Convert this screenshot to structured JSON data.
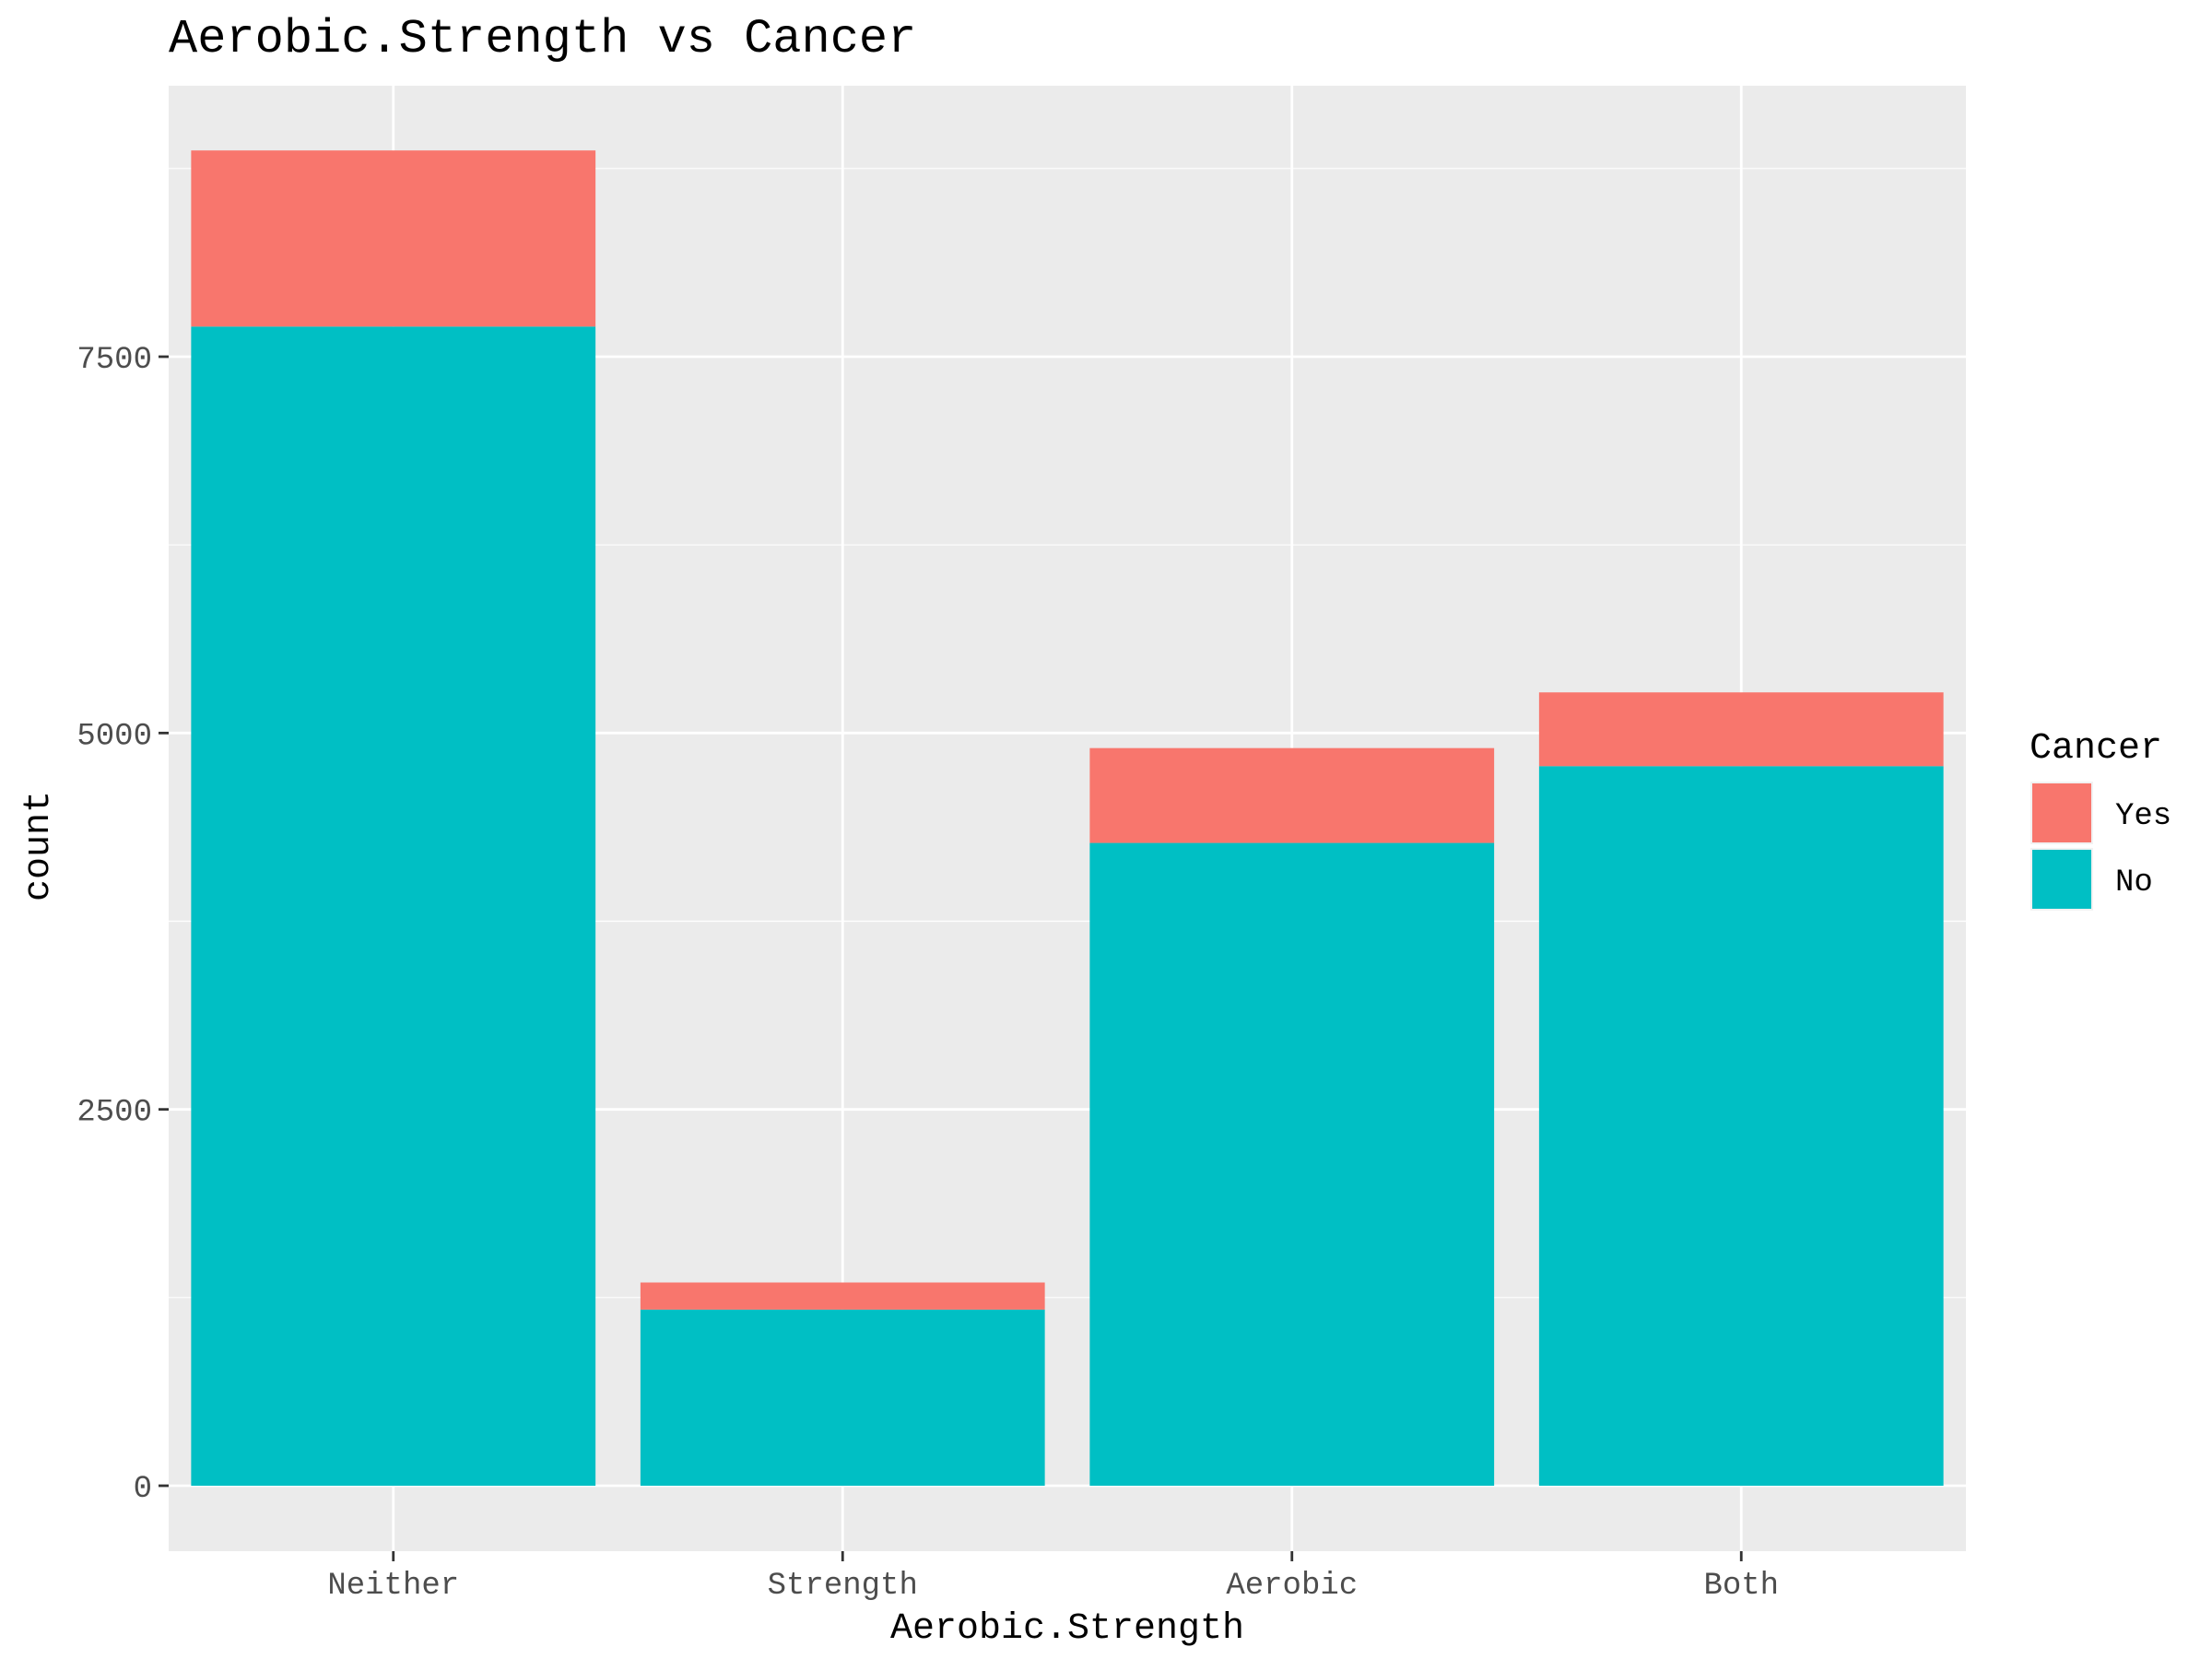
{
  "chart_data": {
    "type": "bar",
    "stacked": true,
    "title": "Aerobic.Strength vs Cancer",
    "xlabel": "Aerobic.Strength",
    "ylabel": "count",
    "categories": [
      "Neither",
      "Strength",
      "Aerobic",
      "Both"
    ],
    "series": [
      {
        "name": "No",
        "color": "#00BFC4",
        "values": [
          7700,
          1170,
          4270,
          4780
        ]
      },
      {
        "name": "Yes",
        "color": "#F8766D",
        "values": [
          1170,
          180,
          630,
          490
        ]
      }
    ],
    "ylim": [
      -440,
      9300
    ],
    "yticks": [
      0,
      2500,
      5000,
      7500
    ],
    "ytick_labels": [
      "0",
      "2500",
      "5000",
      "7500"
    ],
    "grid": true,
    "legend": {
      "title": "Cancer",
      "placement": "right",
      "order": [
        "Yes",
        "No"
      ]
    },
    "colors": {
      "panel_background": "#EBEBEB",
      "grid": "#FFFFFF",
      "tick_label": "#4D4D4D"
    }
  }
}
